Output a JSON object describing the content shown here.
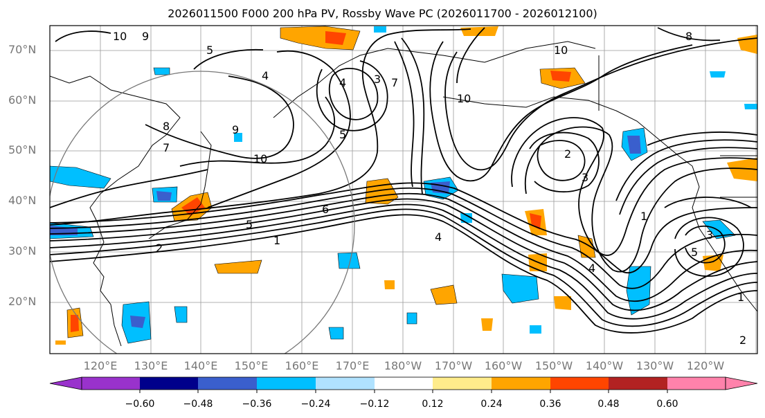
{
  "title": "2026011500 F000 200 hPa PV, Rossby Wave PC (2026011700 - 2026012100)",
  "lat_labels": [
    "70°N",
    "60°N",
    "50°N",
    "40°N",
    "30°N",
    "20°N"
  ],
  "lon_labels": [
    "120°E",
    "130°E",
    "140°E",
    "150°E",
    "160°E",
    "170°E",
    "180°W",
    "170°W",
    "160°W",
    "150°W",
    "140°W",
    "130°W",
    "120°W"
  ],
  "colorbar": {
    "ticks": [
      "−0.60",
      "−0.48",
      "−0.36",
      "−0.24",
      "−0.12",
      "0.12",
      "0.24",
      "0.36",
      "0.48",
      "0.60"
    ],
    "colors": [
      "#9932cc",
      "#00008b",
      "#3a5fcd",
      "#00bfff",
      "#b0e2ff",
      "#ffffff",
      "#ffec8b",
      "#ffa500",
      "#ff4500",
      "#b22222",
      "#ff82ab"
    ]
  },
  "contour_labels": [
    "10",
    "9",
    "5",
    "4",
    "8",
    "7",
    "9",
    "10",
    "6",
    "5",
    "1",
    "2",
    "3",
    "4",
    "5",
    "7",
    "10",
    "2",
    "3",
    "4",
    "5",
    "1",
    "8",
    "10",
    "4",
    "3",
    "2",
    "1"
  ]
}
